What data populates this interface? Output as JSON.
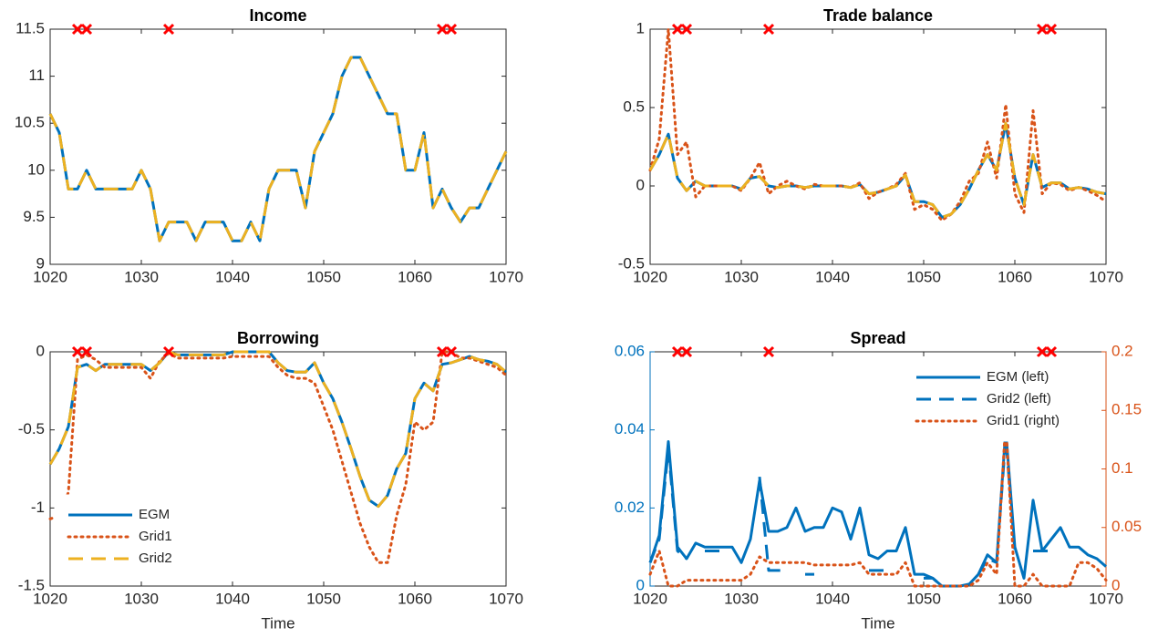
{
  "chart_data": [
    {
      "type": "line",
      "title": "Income",
      "x": [
        1020,
        1021,
        1022,
        1023,
        1024,
        1025,
        1026,
        1027,
        1028,
        1029,
        1030,
        1031,
        1032,
        1033,
        1034,
        1035,
        1036,
        1037,
        1038,
        1039,
        1040,
        1041,
        1042,
        1043,
        1044,
        1045,
        1046,
        1047,
        1048,
        1049,
        1050,
        1051,
        1052,
        1053,
        1054,
        1055,
        1056,
        1057,
        1058,
        1059,
        1060,
        1061,
        1062,
        1063,
        1064,
        1065,
        1066,
        1067,
        1068,
        1069,
        1070
      ],
      "series": [
        {
          "color": "#0072BD",
          "style": "solid",
          "values": [
            10.6,
            10.4,
            9.8,
            9.8,
            10.0,
            9.8,
            9.8,
            9.8,
            9.8,
            9.8,
            10.0,
            9.8,
            9.25,
            9.45,
            9.45,
            9.45,
            9.25,
            9.45,
            9.45,
            9.45,
            9.25,
            9.25,
            9.45,
            9.25,
            9.8,
            10.0,
            10.0,
            10.0,
            9.6,
            10.2,
            10.4,
            10.6,
            11.0,
            11.2,
            11.2,
            11.0,
            10.8,
            10.6,
            10.6,
            10.0,
            10.0,
            10.4,
            9.6,
            9.8,
            9.6,
            9.45,
            9.6,
            9.6,
            9.8,
            10.0,
            10.2
          ]
        },
        {
          "color": "#EDB120",
          "style": "dashed",
          "values": [
            10.6,
            10.4,
            9.8,
            9.8,
            10.0,
            9.8,
            9.8,
            9.8,
            9.8,
            9.8,
            10.0,
            9.8,
            9.25,
            9.45,
            9.45,
            9.45,
            9.25,
            9.45,
            9.45,
            9.45,
            9.25,
            9.25,
            9.45,
            9.25,
            9.8,
            10.0,
            10.0,
            10.0,
            9.6,
            10.2,
            10.4,
            10.6,
            11.0,
            11.2,
            11.2,
            11.0,
            10.8,
            10.6,
            10.6,
            10.0,
            10.0,
            10.4,
            9.6,
            9.8,
            9.6,
            9.45,
            9.6,
            9.6,
            9.8,
            10.0,
            10.2
          ]
        }
      ],
      "markers": {
        "x": [
          1023,
          1024,
          1033,
          1063,
          1064
        ],
        "color": "#FF0000"
      },
      "xlim": [
        1020,
        1070
      ],
      "xticks": [
        1020,
        1030,
        1040,
        1050,
        1060,
        1070
      ],
      "ylim": [
        9,
        11.5
      ],
      "yticks": [
        9,
        9.5,
        10,
        10.5,
        11,
        11.5
      ]
    },
    {
      "type": "line",
      "title": "Trade balance",
      "x": [
        1020,
        1021,
        1022,
        1023,
        1024,
        1025,
        1026,
        1027,
        1028,
        1029,
        1030,
        1031,
        1032,
        1033,
        1034,
        1035,
        1036,
        1037,
        1038,
        1039,
        1040,
        1041,
        1042,
        1043,
        1044,
        1045,
        1046,
        1047,
        1048,
        1049,
        1050,
        1051,
        1052,
        1053,
        1054,
        1055,
        1056,
        1057,
        1058,
        1059,
        1060,
        1061,
        1062,
        1063,
        1064,
        1065,
        1066,
        1067,
        1068,
        1069,
        1070
      ],
      "series": [
        {
          "color": "#0072BD",
          "style": "solid",
          "values": [
            0.1,
            0.2,
            0.33,
            0.05,
            -0.03,
            0.03,
            0,
            0,
            0,
            0,
            -0.02,
            0.05,
            0.06,
            0,
            -0.01,
            0,
            0,
            -0.01,
            0,
            0,
            0,
            0,
            -0.01,
            0.01,
            -0.05,
            -0.04,
            -0.02,
            0,
            0.07,
            -0.1,
            -0.1,
            -0.12,
            -0.2,
            -0.18,
            -0.12,
            -0.02,
            0.1,
            0.2,
            0.1,
            0.4,
            0.05,
            -0.12,
            0.2,
            -0.01,
            0.02,
            0.02,
            -0.02,
            -0.01,
            -0.02,
            -0.04,
            -0.05
          ]
        },
        {
          "color": "#D95319",
          "style": "dotted",
          "values": [
            0.1,
            0.3,
            1.0,
            0.2,
            0.28,
            -0.07,
            0,
            0,
            0,
            0,
            -0.03,
            0.05,
            0.15,
            -0.05,
            0,
            0.03,
            0,
            -0.02,
            0.01,
            0,
            0,
            0,
            -0.01,
            0.02,
            -0.08,
            -0.04,
            -0.02,
            0.01,
            0.08,
            -0.15,
            -0.12,
            -0.15,
            -0.22,
            -0.18,
            -0.1,
            0.03,
            0.08,
            0.28,
            0.05,
            0.52,
            -0.05,
            -0.17,
            0.48,
            -0.05,
            0.02,
            0.01,
            -0.03,
            -0.01,
            -0.03,
            -0.06,
            -0.1
          ]
        },
        {
          "color": "#EDB120",
          "style": "dashed",
          "values": [
            0.1,
            0.2,
            0.33,
            0.05,
            -0.03,
            0.03,
            0,
            0,
            0,
            0,
            -0.02,
            0.05,
            0.06,
            0,
            -0.01,
            0,
            0,
            -0.01,
            0,
            0,
            0,
            0,
            -0.01,
            0.01,
            -0.05,
            -0.04,
            -0.02,
            0,
            0.07,
            -0.1,
            -0.1,
            -0.12,
            -0.2,
            -0.18,
            -0.12,
            -0.02,
            0.1,
            0.2,
            0.1,
            0.4,
            0.05,
            -0.12,
            0.2,
            -0.01,
            0.02,
            0.02,
            -0.02,
            -0.01,
            -0.02,
            -0.04,
            -0.05
          ]
        }
      ],
      "markers": {
        "x": [
          1023,
          1024,
          1033,
          1063,
          1064
        ],
        "color": "#FF0000"
      },
      "xlim": [
        1020,
        1070
      ],
      "xticks": [
        1020,
        1030,
        1040,
        1050,
        1060,
        1070
      ],
      "ylim": [
        -0.5,
        1
      ],
      "yticks": [
        -0.5,
        0,
        0.5,
        1
      ]
    },
    {
      "type": "line",
      "title": "Borrowing",
      "xlabel": "Time",
      "legend": "lower left",
      "x": [
        1020,
        1021,
        1022,
        1023,
        1024,
        1025,
        1026,
        1027,
        1028,
        1029,
        1030,
        1031,
        1032,
        1033,
        1034,
        1035,
        1036,
        1037,
        1038,
        1039,
        1040,
        1041,
        1042,
        1043,
        1044,
        1045,
        1046,
        1047,
        1048,
        1049,
        1050,
        1051,
        1052,
        1053,
        1054,
        1055,
        1056,
        1057,
        1058,
        1059,
        1060,
        1061,
        1062,
        1063,
        1064,
        1065,
        1066,
        1067,
        1068,
        1069,
        1070
      ],
      "series": [
        {
          "name": "EGM",
          "color": "#0072BD",
          "style": "solid",
          "values": [
            -0.72,
            -0.62,
            -0.48,
            -0.1,
            -0.08,
            -0.12,
            -0.08,
            -0.08,
            -0.08,
            -0.08,
            -0.08,
            -0.12,
            -0.07,
            0,
            -0.02,
            -0.02,
            -0.02,
            -0.02,
            -0.02,
            -0.02,
            0,
            0,
            0,
            0,
            0,
            -0.07,
            -0.12,
            -0.13,
            -0.13,
            -0.07,
            -0.2,
            -0.3,
            -0.45,
            -0.62,
            -0.8,
            -0.95,
            -0.99,
            -0.92,
            -0.75,
            -0.65,
            -0.3,
            -0.2,
            -0.25,
            -0.08,
            -0.07,
            -0.05,
            -0.03,
            -0.05,
            -0.06,
            -0.08,
            -0.13
          ]
        },
        {
          "name": "Grid1",
          "color": "#D95319",
          "style": "dotted",
          "values": [
            -1.07,
            -1.05,
            -0.9,
            -0.05,
            -0.02,
            -0.05,
            -0.1,
            -0.1,
            -0.1,
            -0.1,
            -0.1,
            -0.17,
            -0.06,
            -0.01,
            -0.04,
            -0.04,
            -0.04,
            -0.04,
            -0.04,
            -0.04,
            -0.03,
            -0.03,
            -0.03,
            -0.03,
            -0.03,
            -0.1,
            -0.15,
            -0.17,
            -0.17,
            -0.2,
            -0.35,
            -0.5,
            -0.7,
            -0.9,
            -1.1,
            -1.25,
            -1.35,
            -1.35,
            -1.05,
            -0.85,
            -0.45,
            -0.5,
            -0.45,
            0,
            0,
            -0.04,
            -0.04,
            -0.06,
            -0.08,
            -0.1,
            -0.15
          ]
        },
        {
          "name": "Grid2",
          "color": "#EDB120",
          "style": "dashed",
          "values": [
            -0.72,
            -0.62,
            -0.48,
            -0.1,
            -0.08,
            -0.12,
            -0.08,
            -0.08,
            -0.08,
            -0.08,
            -0.08,
            -0.12,
            -0.07,
            0,
            -0.02,
            -0.02,
            -0.02,
            -0.02,
            -0.02,
            -0.02,
            0,
            0,
            0,
            0,
            0,
            -0.07,
            -0.12,
            -0.13,
            -0.13,
            -0.07,
            -0.2,
            -0.3,
            -0.45,
            -0.62,
            -0.8,
            -0.95,
            -0.99,
            -0.92,
            -0.75,
            -0.65,
            -0.3,
            -0.2,
            -0.25,
            -0.08,
            -0.07,
            -0.05,
            -0.03,
            -0.05,
            -0.06,
            -0.08,
            -0.13
          ]
        }
      ],
      "markers": {
        "x": [
          1023,
          1024,
          1033,
          1063,
          1064
        ],
        "color": "#FF0000"
      },
      "xlim": [
        1020,
        1070
      ],
      "xticks": [
        1020,
        1030,
        1040,
        1050,
        1060,
        1070
      ],
      "ylim": [
        -1.5,
        0
      ],
      "yticks": [
        -1.5,
        -1,
        -0.5,
        0
      ]
    },
    {
      "type": "line",
      "title": "Spread",
      "xlabel": "Time",
      "legend": "upper right",
      "ycolor": "#0072BD",
      "y2color": "#D95319",
      "x": [
        1020,
        1021,
        1022,
        1023,
        1024,
        1025,
        1026,
        1027,
        1028,
        1029,
        1030,
        1031,
        1032,
        1033,
        1034,
        1035,
        1036,
        1037,
        1038,
        1039,
        1040,
        1041,
        1042,
        1043,
        1044,
        1045,
        1046,
        1047,
        1048,
        1049,
        1050,
        1051,
        1052,
        1053,
        1054,
        1055,
        1056,
        1057,
        1058,
        1059,
        1060,
        1061,
        1062,
        1063,
        1064,
        1065,
        1066,
        1067,
        1068,
        1069,
        1070
      ],
      "series": [
        {
          "name": "EGM (left)",
          "color": "#0072BD",
          "style": "solid",
          "values": [
            0.006,
            0.013,
            0.037,
            0.01,
            0.007,
            0.011,
            0.01,
            0.01,
            0.01,
            0.01,
            0.006,
            0.012,
            0.027,
            0.014,
            0.014,
            0.015,
            0.02,
            0.014,
            0.015,
            0.015,
            0.02,
            0.019,
            0.012,
            0.02,
            0.008,
            0.007,
            0.009,
            0.009,
            0.015,
            0.003,
            0.003,
            0.002,
            0,
            0,
            0,
            0.0005,
            0.003,
            0.008,
            0.006,
            0.04,
            0.01,
            0.002,
            0.022,
            0.009,
            0.012,
            0.015,
            0.01,
            0.01,
            0.008,
            0.007,
            0.005
          ]
        },
        {
          "name": "Grid2 (left)",
          "color": "#0072BD",
          "style": "dashed",
          "values": [
            0.006,
            0.012,
            0.035,
            0.009,
            0.007,
            null,
            0.009,
            0.009,
            0.009,
            null,
            0.009,
            null,
            0.028,
            0.004,
            0.004,
            0.004,
            null,
            0.003,
            0.003,
            null,
            0.003,
            null,
            0.003,
            null,
            0.004,
            0.004,
            0.004,
            null,
            0.004,
            null,
            0.002,
            0.002,
            0,
            0,
            0,
            null,
            0.003,
            0.007,
            0.006,
            0.038,
            0.009,
            null,
            0.009,
            0.009,
            0.009,
            null,
            0.006,
            null,
            null,
            null,
            null
          ]
        },
        {
          "name": "Grid1 (right)",
          "color": "#D95319",
          "style": "dotted",
          "axis": "y2",
          "values": [
            0.01,
            0.03,
            0,
            0,
            0.005,
            0.005,
            0.005,
            0.005,
            0.005,
            0.005,
            0.005,
            0.01,
            0.025,
            0.02,
            0.02,
            0.02,
            0.02,
            0.02,
            0.018,
            0.018,
            0.018,
            0.018,
            0.018,
            0.02,
            0.01,
            0.01,
            0.01,
            0.01,
            0.02,
            0,
            0,
            0,
            0,
            0,
            0,
            0,
            0.005,
            0.02,
            0.01,
            0.14,
            0,
            0,
            0.01,
            0,
            0,
            0,
            0,
            0.02,
            0.02,
            0.015,
            0.005
          ]
        }
      ],
      "markers": {
        "x": [
          1023,
          1024,
          1033,
          1063,
          1064
        ],
        "color": "#FF0000"
      },
      "xlim": [
        1020,
        1070
      ],
      "xticks": [
        1020,
        1030,
        1040,
        1050,
        1060,
        1070
      ],
      "ylim": [
        0,
        0.06
      ],
      "yticks": [
        0,
        0.02,
        0.04,
        0.06
      ],
      "y2lim": [
        0,
        0.2
      ],
      "y2ticks": [
        0,
        0.05,
        0.1,
        0.15,
        0.2
      ]
    }
  ]
}
